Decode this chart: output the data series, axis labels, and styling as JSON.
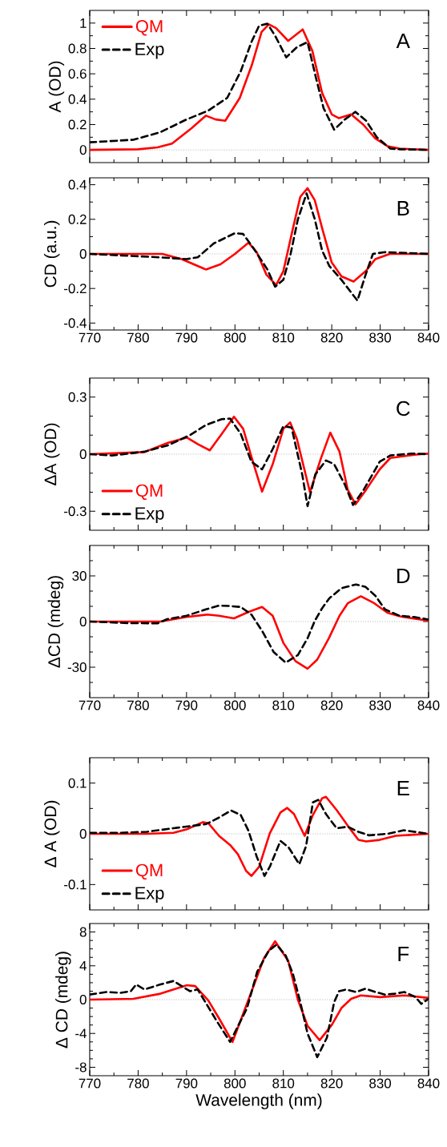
{
  "chart_data": [
    {
      "type": "line",
      "ylabel": "A (OD)",
      "annotations": [
        "A"
      ],
      "xlim": [
        770,
        840
      ],
      "ylim": [
        -0.1,
        1.1
      ],
      "xticks": [
        770,
        {
          "value": 775,
          "label": null
        },
        780,
        {
          "value": 785,
          "label": null
        },
        790,
        {
          "value": 795,
          "label": null
        },
        800,
        {
          "value": 805,
          "label": null
        },
        810,
        {
          "value": 815,
          "label": null
        },
        820,
        {
          "value": 825,
          "label": null
        },
        830,
        {
          "value": 835,
          "label": null
        },
        840
      ],
      "yticks": [
        0,
        {
          "value": 0.1,
          "label": null
        },
        0.2,
        {
          "value": 0.3,
          "label": null
        },
        0.4,
        {
          "value": 0.5,
          "label": null
        },
        0.6,
        {
          "value": 0.7,
          "label": null
        },
        0.8,
        {
          "value": 0.9,
          "label": null
        },
        1
      ],
      "tick_labels": "y",
      "legend": "top left",
      "ref_lines": [
        {
          "axis": "y",
          "value": 0,
          "color": "#b0b0b0",
          "line_style": "dotted"
        }
      ],
      "series": [
        {
          "name": "QM",
          "color": "#ff0000",
          "line_style": "solid",
          "x": [
            770,
            780,
            784,
            787,
            791,
            794,
            796,
            798,
            801,
            803.5,
            805.5,
            807,
            808.5,
            811,
            813,
            814,
            816,
            818,
            820,
            821.5,
            824,
            826.5,
            829,
            831.5,
            834,
            840
          ],
          "values": [
            0,
            0.005,
            0.02,
            0.05,
            0.17,
            0.27,
            0.24,
            0.23,
            0.41,
            0.67,
            0.93,
            0.99,
            0.96,
            0.86,
            0.92,
            0.95,
            0.78,
            0.45,
            0.28,
            0.25,
            0.28,
            0.2,
            0.09,
            0.03,
            0.01,
            0
          ]
        },
        {
          "name": "Exp",
          "color": "#000000",
          "line_style": "dashed",
          "x": [
            770,
            779,
            784.6,
            790,
            794.5,
            798.4,
            801.2,
            803.4,
            805,
            806.7,
            808.3,
            810.6,
            812.8,
            815,
            816.6,
            818.3,
            820.5,
            822.7,
            824.9,
            827.1,
            829.3,
            832.1,
            834.3,
            840
          ],
          "values": [
            0.06,
            0.08,
            0.14,
            0.24,
            0.31,
            0.41,
            0.62,
            0.85,
            0.98,
            0.995,
            0.9,
            0.73,
            0.81,
            0.85,
            0.59,
            0.33,
            0.16,
            0.24,
            0.3,
            0.23,
            0.1,
            0.01,
            0.005,
            0
          ]
        }
      ]
    },
    {
      "type": "line",
      "ylabel": "CD (a.u.)",
      "annotations": [
        "B"
      ],
      "xlim": [
        770,
        840
      ],
      "ylim": [
        -0.44,
        0.44
      ],
      "xticks": [
        770,
        {
          "value": 775,
          "label": null
        },
        780,
        {
          "value": 785,
          "label": null
        },
        790,
        {
          "value": 795,
          "label": null
        },
        800,
        {
          "value": 805,
          "label": null
        },
        810,
        {
          "value": 815,
          "label": null
        },
        820,
        {
          "value": 825,
          "label": null
        },
        830,
        {
          "value": 835,
          "label": null
        },
        840
      ],
      "yticks": [
        -0.4,
        {
          "value": -0.3,
          "label": null
        },
        -0.2,
        {
          "value": -0.1,
          "label": null
        },
        0,
        {
          "value": 0.1,
          "label": null
        },
        0.2,
        {
          "value": 0.3,
          "label": null
        },
        0.4
      ],
      "ref_lines": [
        {
          "axis": "y",
          "value": 0,
          "color": "#b0b0b0",
          "line_style": "dotted"
        }
      ],
      "series": [
        {
          "color": "#ff0000",
          "line_style": "solid",
          "x": [
            770,
            785,
            789,
            794,
            797,
            800,
            802.8,
            804.5,
            806.5,
            808.5,
            810,
            812,
            813.5,
            815,
            816.5,
            818,
            820,
            822,
            824.5,
            827,
            829,
            832,
            840
          ],
          "values": [
            0,
            0,
            -0.03,
            -0.09,
            -0.06,
            0,
            0.065,
            0.01,
            -0.12,
            -0.18,
            -0.1,
            0.15,
            0.33,
            0.38,
            0.31,
            0.15,
            -0.05,
            -0.13,
            -0.16,
            -0.1,
            -0.03,
            0,
            0
          ]
        },
        {
          "color": "#000000",
          "line_style": "dashed",
          "x": [
            770,
            784.6,
            790,
            792.3,
            795.6,
            800,
            801.7,
            803.9,
            806.7,
            808.3,
            810,
            811.5,
            813,
            814.8,
            816.5,
            818,
            819.5,
            822,
            825.3,
            827,
            828.5,
            831,
            840
          ],
          "values": [
            0,
            -0.02,
            -0.03,
            -0.02,
            0.06,
            0.12,
            0.115,
            0.03,
            -0.09,
            -0.19,
            -0.15,
            0,
            0.2,
            0.35,
            0.2,
            0.02,
            -0.07,
            -0.15,
            -0.27,
            -0.12,
            0,
            0.01,
            0
          ]
        }
      ]
    },
    {
      "type": "line",
      "ylabel": "ΔA (OD)",
      "annotations": [
        "C"
      ],
      "xlim": [
        770,
        840
      ],
      "ylim": [
        -0.4,
        0.4
      ],
      "xticks": [
        770,
        {
          "value": 775,
          "label": null
        },
        780,
        {
          "value": 785,
          "label": null
        },
        790,
        {
          "value": 795,
          "label": null
        },
        800,
        {
          "value": 805,
          "label": null
        },
        810,
        {
          "value": 815,
          "label": null
        },
        820,
        {
          "value": 825,
          "label": null
        },
        830,
        {
          "value": 835,
          "label": null
        },
        840
      ],
      "yticks": [
        -0.3,
        {
          "value": -0.2,
          "label": null
        },
        {
          "value": -0.1,
          "label": null
        },
        0,
        {
          "value": 0.1,
          "label": null
        },
        {
          "value": 0.2,
          "label": null
        },
        0.3
      ],
      "tick_labels": "y",
      "legend": "bottom left",
      "ref_lines": [
        {
          "axis": "y",
          "value": 0,
          "color": "#b0b0b0",
          "line_style": "dotted"
        }
      ],
      "series": [
        {
          "name": "QM",
          "color": "#ff0000",
          "line_style": "solid",
          "x": [
            770,
            781.3,
            786.2,
            790.1,
            792.3,
            794.8,
            797.3,
            799.8,
            801.7,
            803.4,
            805.6,
            807.8,
            810,
            811.4,
            812.8,
            815.5,
            817.7,
            819.7,
            821.6,
            823.3,
            824.9,
            827.1,
            829.9,
            832.1,
            837.1,
            840
          ],
          "values": [
            0,
            0.011,
            0.06,
            0.087,
            0.053,
            0.02,
            0.107,
            0.197,
            0.133,
            -0.013,
            -0.197,
            -0.053,
            0.133,
            0.167,
            0.08,
            -0.2,
            -0.027,
            0.113,
            0.013,
            -0.187,
            -0.264,
            -0.187,
            -0.08,
            -0.02,
            -0.003,
            0.003
          ]
        },
        {
          "name": "Exp",
          "color": "#000000",
          "line_style": "dashed",
          "x": [
            770,
            774.6,
            781.3,
            786.2,
            790.7,
            794,
            797.3,
            799,
            801.2,
            803.4,
            805.6,
            807.8,
            810,
            811.7,
            813.9,
            815,
            816.6,
            818.8,
            820.5,
            822.7,
            824.4,
            826.6,
            829.9,
            832.1,
            836.5,
            840
          ],
          "values": [
            0,
            -0.007,
            0.013,
            0.047,
            0.1,
            0.153,
            0.184,
            0.187,
            0.107,
            -0.04,
            -0.08,
            0.027,
            0.147,
            0.14,
            -0.107,
            -0.273,
            -0.107,
            -0.033,
            -0.053,
            -0.16,
            -0.267,
            -0.187,
            -0.04,
            -0.007,
            0.003,
            0
          ]
        }
      ]
    },
    {
      "type": "line",
      "ylabel": "ΔCD (mdeg)",
      "annotations": [
        "D"
      ],
      "xlim": [
        770,
        840
      ],
      "ylim": [
        -50,
        50
      ],
      "xticks": [
        770,
        {
          "value": 775,
          "label": null
        },
        780,
        {
          "value": 785,
          "label": null
        },
        790,
        {
          "value": 795,
          "label": null
        },
        800,
        {
          "value": 805,
          "label": null
        },
        810,
        {
          "value": 815,
          "label": null
        },
        820,
        {
          "value": 825,
          "label": null
        },
        830,
        {
          "value": 835,
          "label": null
        },
        840
      ],
      "yticks": [
        {
          "value": -40,
          "label": null
        },
        -30,
        {
          "value": -20,
          "label": null
        },
        {
          "value": -10,
          "label": null
        },
        0,
        {
          "value": 10,
          "label": null
        },
        {
          "value": 20,
          "label": null
        },
        30,
        {
          "value": 40,
          "label": null
        }
      ],
      "ref_lines": [
        {
          "axis": "y",
          "value": 0,
          "color": "#b0b0b0",
          "line_style": "dotted"
        }
      ],
      "series": [
        {
          "color": "#ff0000",
          "line_style": "solid",
          "x": [
            770,
            784.6,
            790,
            794.3,
            796.7,
            799.8,
            802.8,
            805.6,
            807.8,
            810,
            812.5,
            815,
            817,
            819.4,
            821.6,
            823.3,
            826,
            828.8,
            831.5,
            834.3,
            840
          ],
          "values": [
            0,
            0,
            3,
            4.6,
            3.8,
            2.1,
            6.3,
            9.6,
            3.8,
            -14,
            -26,
            -31,
            -25,
            -11,
            3.8,
            12,
            16.6,
            12,
            5.8,
            3.3,
            0.5
          ]
        },
        {
          "color": "#000000",
          "line_style": "dashed",
          "x": [
            770,
            778,
            784,
            786,
            790,
            794,
            796.7,
            798.9,
            801.2,
            803.4,
            805.6,
            808,
            810.5,
            813,
            815,
            816.5,
            818,
            819.5,
            822,
            825,
            827,
            829,
            831,
            834,
            837,
            840
          ],
          "values": [
            0,
            -1,
            -1.2,
            1.6,
            3.8,
            8,
            10.5,
            10.2,
            9.6,
            4.6,
            -6.1,
            -20,
            -27,
            -22,
            -11,
            0.5,
            8.7,
            15.3,
            21.9,
            24.4,
            22.7,
            17,
            8,
            3.8,
            3,
            1.3
          ]
        }
      ]
    },
    {
      "type": "line",
      "ylabel": "Δ A (OD)",
      "annotations": [
        "E"
      ],
      "xlim": [
        770,
        840
      ],
      "ylim": [
        -0.15,
        0.15
      ],
      "xticks": [
        770,
        {
          "value": 775,
          "label": null
        },
        780,
        {
          "value": 785,
          "label": null
        },
        790,
        {
          "value": 795,
          "label": null
        },
        800,
        {
          "value": 805,
          "label": null
        },
        810,
        {
          "value": 815,
          "label": null
        },
        820,
        {
          "value": 825,
          "label": null
        },
        830,
        {
          "value": 835,
          "label": null
        },
        840
      ],
      "yticks": [
        -0.1,
        {
          "value": -0.05,
          "label": null
        },
        0,
        {
          "value": 0.05,
          "label": null
        },
        0.1
      ],
      "tick_labels": "y",
      "legend": "bottom left",
      "ref_lines": [
        {
          "axis": "y",
          "value": 0,
          "color": "#b0b0b0",
          "line_style": "dotted"
        }
      ],
      "series": [
        {
          "name": "QM",
          "color": "#ff0000",
          "line_style": "solid",
          "x": [
            770,
            781.8,
            787.3,
            790.1,
            793.4,
            794.5,
            796.7,
            799,
            800.6,
            802.3,
            803.4,
            805,
            807.2,
            809.4,
            810.8,
            812.2,
            814.4,
            816.1,
            818,
            818.8,
            821,
            823.3,
            825.5,
            827.1,
            829.9,
            833.2,
            840
          ],
          "values": [
            0,
            0,
            0.002,
            0.009,
            0.023,
            0.021,
            -0.004,
            -0.022,
            -0.04,
            -0.073,
            -0.083,
            -0.065,
            0.001,
            0.042,
            0.051,
            0.039,
            -0.004,
            0.037,
            0.07,
            0.073,
            0.047,
            0.016,
            -0.012,
            -0.015,
            -0.012,
            -0.004,
            0
          ]
        },
        {
          "name": "Exp",
          "color": "#000000",
          "line_style": "dashed",
          "x": [
            770,
            776.3,
            781.8,
            787.3,
            794,
            796.7,
            799.2,
            801.2,
            802.8,
            804.5,
            806.1,
            807.2,
            809.4,
            811.1,
            813.3,
            814.7,
            816.1,
            817.2,
            818.8,
            821,
            823.3,
            825.5,
            827.7,
            831.5,
            834.9,
            840
          ],
          "values": [
            0.002,
            0.002,
            0.004,
            0.011,
            0.019,
            0.032,
            0.046,
            0.037,
            0.006,
            -0.045,
            -0.083,
            -0.065,
            -0.014,
            -0.027,
            -0.06,
            -0.024,
            0.062,
            0.067,
            0.039,
            0.011,
            0.014,
            0.004,
            -0.003,
            0,
            0.007,
            0
          ]
        }
      ]
    },
    {
      "type": "line",
      "xlabel": "Wavelength (nm)",
      "ylabel": "Δ CD (mdeg)",
      "annotations": [
        "F"
      ],
      "xlim": [
        770,
        840
      ],
      "ylim": [
        -9,
        9
      ],
      "xticks": [
        770,
        {
          "value": 775,
          "label": null
        },
        780,
        {
          "value": 785,
          "label": null
        },
        790,
        {
          "value": 795,
          "label": null
        },
        800,
        {
          "value": 805,
          "label": null
        },
        810,
        {
          "value": 815,
          "label": null
        },
        820,
        {
          "value": 825,
          "label": null
        },
        830,
        {
          "value": 835,
          "label": null
        },
        840
      ],
      "yticks": [
        -8,
        {
          "value": -7,
          "label": null
        },
        {
          "value": -6,
          "label": null
        },
        {
          "value": -5,
          "label": null
        },
        -4,
        {
          "value": -3,
          "label": null
        },
        {
          "value": -2,
          "label": null
        },
        {
          "value": -1,
          "label": null
        },
        0,
        {
          "value": 1,
          "label": null
        },
        {
          "value": 2,
          "label": null
        },
        {
          "value": 3,
          "label": null
        },
        4,
        {
          "value": 5,
          "label": null
        },
        {
          "value": 6,
          "label": null
        },
        {
          "value": 7,
          "label": null
        },
        8
      ],
      "ref_lines": [
        {
          "axis": "y",
          "value": 0,
          "color": "#b0b0b0",
          "line_style": "dotted"
        }
      ],
      "series": [
        {
          "color": "#ff0000",
          "line_style": "solid",
          "x": [
            770,
            779,
            784.6,
            790.1,
            791.8,
            794.5,
            796.7,
            799.5,
            802.8,
            806,
            808.3,
            811,
            813,
            815,
            817.5,
            820,
            822,
            824,
            826,
            830,
            835,
            840
          ],
          "values": [
            0,
            0.1,
            0.7,
            1.7,
            1.6,
            -0.1,
            -2.2,
            -5,
            0,
            4.9,
            6.9,
            4.6,
            0,
            -3.1,
            -4.8,
            -3,
            -1,
            0.1,
            0.5,
            0.3,
            0.5,
            0.2
          ]
        },
        {
          "color": "#000000",
          "line_style": "dashed",
          "x": [
            770,
            773.5,
            776.3,
            778.5,
            779.6,
            781.3,
            784.6,
            787.3,
            789,
            790.7,
            792.3,
            794,
            796.2,
            799,
            802.5,
            804.6,
            807,
            808.6,
            810.5,
            812,
            813.5,
            815,
            817,
            819,
            820.5,
            821.5,
            823,
            825,
            827,
            829,
            831,
            833,
            835,
            837.3,
            838.5,
            840
          ],
          "values": [
            0.6,
            0.9,
            0.8,
            1,
            1.8,
            1.2,
            1.8,
            2.2,
            1.6,
            1,
            1.2,
            -0.4,
            -2.5,
            -5,
            -1,
            3.3,
            5.8,
            6.5,
            5.2,
            3,
            -0.3,
            -4,
            -6.8,
            -4.5,
            -0.3,
            1,
            1.2,
            0.9,
            1.3,
            0.9,
            0.6,
            0.7,
            0.9,
            0.3,
            -0.5,
            0.1
          ]
        }
      ]
    }
  ]
}
